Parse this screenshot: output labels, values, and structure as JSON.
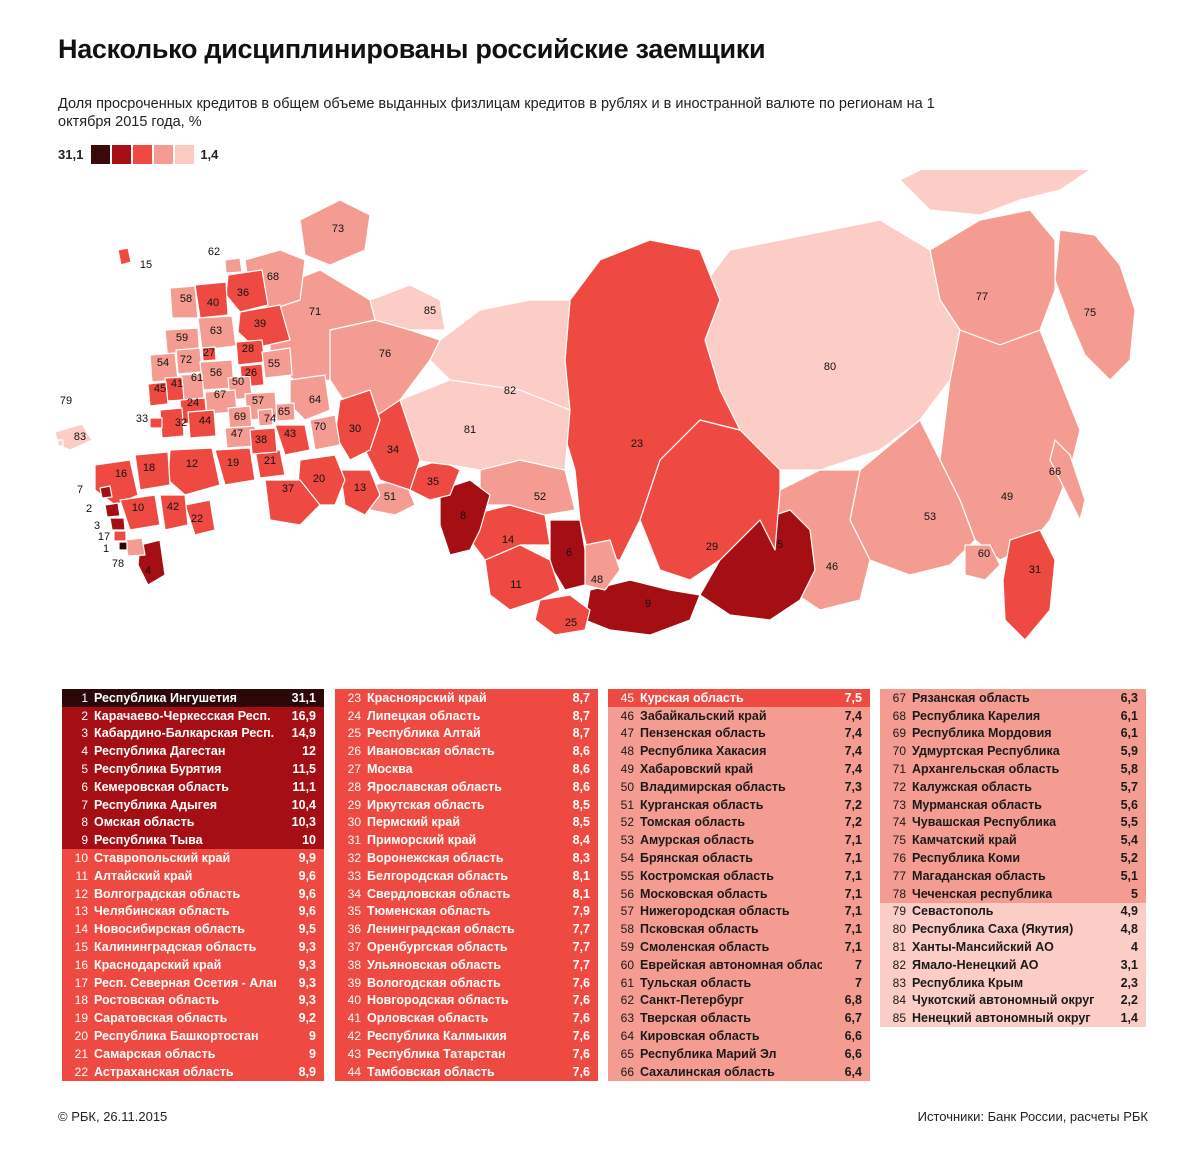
{
  "title": "Насколько дисциплинированы российские заемщики",
  "subtitle": "Доля просроченных кредитов в общем объеме выданных физлицам кредитов в рублях и в иностранной валюте по регионам на 1 октября 2015 года, %",
  "legend": {
    "max": "31,1",
    "min": "1,4",
    "colors": [
      "#3a0a0a",
      "#a80f14",
      "#ee4a42",
      "#f59b91",
      "#fbcbc4"
    ]
  },
  "classes": [
    {
      "bg": "#2c0707",
      "fg": "#ffffff"
    },
    {
      "bg": "#a50f14",
      "fg": "#ffffff"
    },
    {
      "bg": "#ee4a42",
      "fg": "#ffffff"
    },
    {
      "bg": "#f49c92",
      "fg": "#1a1a1a"
    },
    {
      "bg": "#fbcdc6",
      "fg": "#1a1a1a"
    }
  ],
  "regions": [
    {
      "n": "1",
      "name": "Республика Ингушетия",
      "value": "31,1",
      "cls": 0
    },
    {
      "n": "2",
      "name": "Карачаево-Черкесская Респ.",
      "value": "16,9",
      "cls": 1
    },
    {
      "n": "3",
      "name": "Кабардино-Балкарская Респ.",
      "value": "14,9",
      "cls": 1
    },
    {
      "n": "4",
      "name": "Республика Дагестан",
      "value": "12",
      "cls": 1
    },
    {
      "n": "5",
      "name": "Республика Бурятия",
      "value": "11,5",
      "cls": 1
    },
    {
      "n": "6",
      "name": "Кемеровская область",
      "value": "11,1",
      "cls": 1
    },
    {
      "n": "7",
      "name": "Республика Адыгея",
      "value": "10,4",
      "cls": 1
    },
    {
      "n": "8",
      "name": "Омская область",
      "value": "10,3",
      "cls": 1
    },
    {
      "n": "9",
      "name": "Республика Тыва",
      "value": "10",
      "cls": 1
    },
    {
      "n": "10",
      "name": "Ставропольский край",
      "value": "9,9",
      "cls": 2
    },
    {
      "n": "11",
      "name": "Алтайский край",
      "value": "9,6",
      "cls": 2
    },
    {
      "n": "12",
      "name": "Волгоградская область",
      "value": "9,6",
      "cls": 2
    },
    {
      "n": "13",
      "name": "Челябинская область",
      "value": "9,6",
      "cls": 2
    },
    {
      "n": "14",
      "name": "Новосибирская область",
      "value": "9,5",
      "cls": 2
    },
    {
      "n": "15",
      "name": "Калининградская область",
      "value": "9,3",
      "cls": 2
    },
    {
      "n": "16",
      "name": "Краснодарский край",
      "value": "9,3",
      "cls": 2
    },
    {
      "n": "17",
      "name": "Респ. Северная Осетия - Алания",
      "value": "9,3",
      "cls": 2
    },
    {
      "n": "18",
      "name": "Ростовская область",
      "value": "9,3",
      "cls": 2
    },
    {
      "n": "19",
      "name": "Саратовская область",
      "value": "9,2",
      "cls": 2
    },
    {
      "n": "20",
      "name": "Республика Башкортостан",
      "value": "9",
      "cls": 2
    },
    {
      "n": "21",
      "name": "Самарская область",
      "value": "9",
      "cls": 2
    },
    {
      "n": "22",
      "name": "Астраханская область",
      "value": "8,9",
      "cls": 2
    },
    {
      "n": "23",
      "name": "Красноярский край",
      "value": "8,7",
      "cls": 2
    },
    {
      "n": "24",
      "name": "Липецкая область",
      "value": "8,7",
      "cls": 2
    },
    {
      "n": "25",
      "name": "Республика Алтай",
      "value": "8,7",
      "cls": 2
    },
    {
      "n": "26",
      "name": "Ивановская область",
      "value": "8,6",
      "cls": 2
    },
    {
      "n": "27",
      "name": "Москва",
      "value": "8,6",
      "cls": 2
    },
    {
      "n": "28",
      "name": "Ярославская область",
      "value": "8,6",
      "cls": 2
    },
    {
      "n": "29",
      "name": "Иркутская область",
      "value": "8,5",
      "cls": 2
    },
    {
      "n": "30",
      "name": "Пермский край",
      "value": "8,5",
      "cls": 2
    },
    {
      "n": "31",
      "name": "Приморский край",
      "value": "8,4",
      "cls": 2
    },
    {
      "n": "32",
      "name": "Воронежская область",
      "value": "8,3",
      "cls": 2
    },
    {
      "n": "33",
      "name": "Белгородская область",
      "value": "8,1",
      "cls": 2
    },
    {
      "n": "34",
      "name": "Свердловская область",
      "value": "8,1",
      "cls": 2
    },
    {
      "n": "35",
      "name": "Тюменская область",
      "value": "7,9",
      "cls": 2
    },
    {
      "n": "36",
      "name": "Ленинградская область",
      "value": "7,7",
      "cls": 2
    },
    {
      "n": "37",
      "name": "Оренбургская область",
      "value": "7,7",
      "cls": 2
    },
    {
      "n": "38",
      "name": "Ульяновская область",
      "value": "7,7",
      "cls": 2
    },
    {
      "n": "39",
      "name": "Вологодская область",
      "value": "7,6",
      "cls": 2
    },
    {
      "n": "40",
      "name": "Новгородская область",
      "value": "7,6",
      "cls": 2
    },
    {
      "n": "41",
      "name": "Орловская область",
      "value": "7,6",
      "cls": 2
    },
    {
      "n": "42",
      "name": "Республика Калмыкия",
      "value": "7,6",
      "cls": 2
    },
    {
      "n": "43",
      "name": "Республика Татарстан",
      "value": "7,6",
      "cls": 2
    },
    {
      "n": "44",
      "name": "Тамбовская область",
      "value": "7,6",
      "cls": 2
    },
    {
      "n": "45",
      "name": "Курская область",
      "value": "7,5",
      "cls": 2
    },
    {
      "n": "46",
      "name": "Забайкальский край",
      "value": "7,4",
      "cls": 3
    },
    {
      "n": "47",
      "name": "Пензенская область",
      "value": "7,4",
      "cls": 3
    },
    {
      "n": "48",
      "name": "Республика Хакасия",
      "value": "7,4",
      "cls": 3
    },
    {
      "n": "49",
      "name": "Хабаровский край",
      "value": "7,4",
      "cls": 3
    },
    {
      "n": "50",
      "name": "Владимирская область",
      "value": "7,3",
      "cls": 3
    },
    {
      "n": "51",
      "name": "Курганская область",
      "value": "7,2",
      "cls": 3
    },
    {
      "n": "52",
      "name": "Томская область",
      "value": "7,2",
      "cls": 3
    },
    {
      "n": "53",
      "name": "Амурская область",
      "value": "7,1",
      "cls": 3
    },
    {
      "n": "54",
      "name": "Брянская область",
      "value": "7,1",
      "cls": 3
    },
    {
      "n": "55",
      "name": "Костромская область",
      "value": "7,1",
      "cls": 3
    },
    {
      "n": "56",
      "name": "Московская область",
      "value": "7,1",
      "cls": 3
    },
    {
      "n": "57",
      "name": "Нижегородская область",
      "value": "7,1",
      "cls": 3
    },
    {
      "n": "58",
      "name": "Псковская область",
      "value": "7,1",
      "cls": 3
    },
    {
      "n": "59",
      "name": "Смоленская область",
      "value": "7,1",
      "cls": 3
    },
    {
      "n": "60",
      "name": "Еврейская автономная область",
      "value": "7",
      "cls": 3
    },
    {
      "n": "61",
      "name": "Тульская область",
      "value": "7",
      "cls": 3
    },
    {
      "n": "62",
      "name": "Санкт-Петербург",
      "value": "6,8",
      "cls": 3
    },
    {
      "n": "63",
      "name": "Тверская область",
      "value": "6,7",
      "cls": 3
    },
    {
      "n": "64",
      "name": "Кировская область",
      "value": "6,6",
      "cls": 3
    },
    {
      "n": "65",
      "name": "Республика Марий Эл",
      "value": "6,6",
      "cls": 3
    },
    {
      "n": "66",
      "name": "Сахалинская область",
      "value": "6,4",
      "cls": 3
    },
    {
      "n": "67",
      "name": "Рязанская область",
      "value": "6,3",
      "cls": 3
    },
    {
      "n": "68",
      "name": "Республика Карелия",
      "value": "6,1",
      "cls": 3
    },
    {
      "n": "69",
      "name": "Республика Мордовия",
      "value": "6,1",
      "cls": 3
    },
    {
      "n": "70",
      "name": "Удмуртская Республика",
      "value": "5,9",
      "cls": 3
    },
    {
      "n": "71",
      "name": "Архангельская область",
      "value": "5,8",
      "cls": 3
    },
    {
      "n": "72",
      "name": "Калужская область",
      "value": "5,7",
      "cls": 3
    },
    {
      "n": "73",
      "name": "Мурманская область",
      "value": "5,6",
      "cls": 3
    },
    {
      "n": "74",
      "name": "Чувашская Республика",
      "value": "5,5",
      "cls": 3
    },
    {
      "n": "75",
      "name": "Камчатский край",
      "value": "5,4",
      "cls": 3
    },
    {
      "n": "76",
      "name": "Республика Коми",
      "value": "5,2",
      "cls": 3
    },
    {
      "n": "77",
      "name": "Магаданская область",
      "value": "5,1",
      "cls": 3
    },
    {
      "n": "78",
      "name": "Чеченская республика",
      "value": "5",
      "cls": 3
    },
    {
      "n": "79",
      "name": "Севастополь",
      "value": "4,9",
      "cls": 4
    },
    {
      "n": "80",
      "name": "Республика Саха (Якутия)",
      "value": "4,8",
      "cls": 4
    },
    {
      "n": "81",
      "name": "Ханты-Мансийский АО",
      "value": "4",
      "cls": 4
    },
    {
      "n": "82",
      "name": "Ямало-Ненецкий АО",
      "value": "3,1",
      "cls": 4
    },
    {
      "n": "83",
      "name": "Республика Крым",
      "value": "2,3",
      "cls": 4
    },
    {
      "n": "84",
      "name": "Чукотский автономный округ",
      "value": "2,2",
      "cls": 4
    },
    {
      "n": "85",
      "name": "Ненецкий автономный округ",
      "value": "1,4",
      "cls": 4
    }
  ],
  "footer": {
    "left": "© РБК, 26.11.2015",
    "right": "Источники: Банк России, расчеты РБК"
  }
}
